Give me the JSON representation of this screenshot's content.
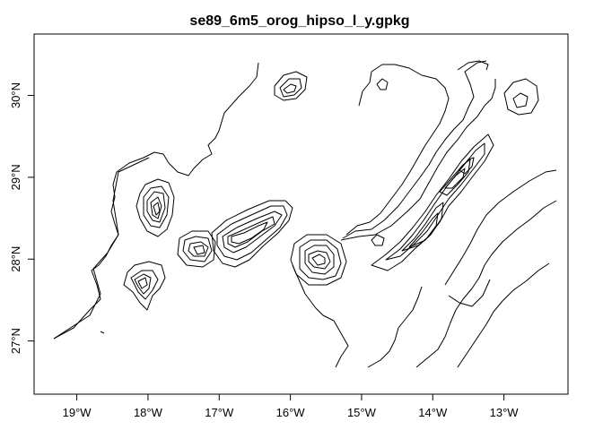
{
  "map": {
    "title": "se89_6m5_orog_hipso_l_y.gpkg",
    "x_ticks": [
      "19°W",
      "18°W",
      "17°W",
      "16°W",
      "15°W",
      "14°W",
      "13°W"
    ],
    "y_ticks": [
      "30°N",
      "29°N",
      "28°N",
      "27°N"
    ],
    "x_tick_values": [
      -19,
      -18,
      -17,
      -16,
      -15,
      -14,
      -13
    ],
    "y_tick_values": [
      30,
      29,
      28,
      27
    ],
    "xlim": [
      -19.6,
      -12.1
    ],
    "ylim": [
      26.35,
      30.75
    ],
    "content": "Contour lines (orography / hypsometry) of the Canary Islands and surrounding sea floor"
  }
}
